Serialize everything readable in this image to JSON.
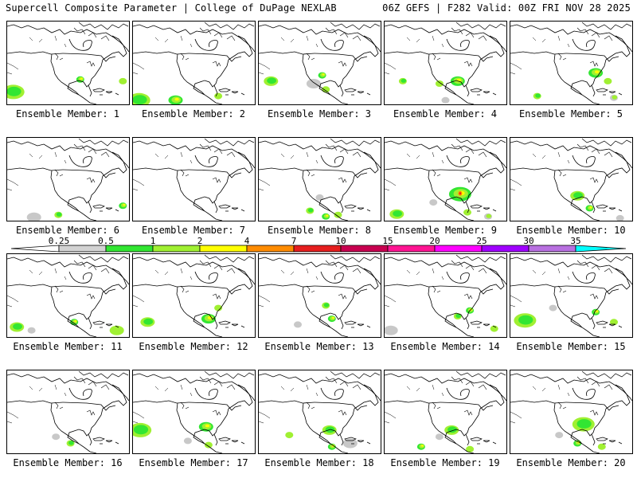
{
  "header": {
    "title_left": "Supercell Composite Parameter | College of DuPage NEXLAB",
    "title_right": "06Z GEFS | F282 Valid: 00Z FRI NOV 28 2025"
  },
  "member_prefix": "Ensemble Member:",
  "members": [
    {
      "label": "Ensemble Member: 1",
      "blobs": [
        [
          "b",
          0.05,
          0.85,
          "l"
        ],
        [
          "c",
          0.6,
          0.7,
          "s"
        ],
        [
          "d",
          0.95,
          0.72,
          "s"
        ]
      ]
    },
    {
      "label": "Ensemble Member: 2",
      "blobs": [
        [
          "b",
          0.05,
          0.95,
          "l"
        ],
        [
          "c",
          0.35,
          0.95,
          "m"
        ],
        [
          "d",
          0.7,
          0.9,
          "s"
        ]
      ]
    },
    {
      "label": "Ensemble Member: 3",
      "blobs": [
        [
          "b",
          0.1,
          0.72,
          "m"
        ],
        [
          "c",
          0.52,
          0.65,
          "s"
        ],
        [
          "d",
          0.55,
          0.82,
          "s"
        ],
        [
          "a",
          0.45,
          0.75,
          "m"
        ]
      ]
    },
    {
      "label": "Ensemble Member: 4",
      "blobs": [
        [
          "b",
          0.15,
          0.72,
          "s"
        ],
        [
          "c",
          0.6,
          0.72,
          "m"
        ],
        [
          "d",
          0.45,
          0.75,
          "s"
        ],
        [
          "a",
          0.5,
          0.95,
          "s"
        ]
      ]
    },
    {
      "label": "Ensemble Member: 5",
      "blobs": [
        [
          "b",
          0.22,
          0.9,
          "s"
        ],
        [
          "c",
          0.7,
          0.62,
          "m"
        ],
        [
          "d",
          0.8,
          0.72,
          "s"
        ],
        [
          "e",
          0.85,
          0.92,
          "s"
        ]
      ]
    },
    {
      "label": "Ensemble Member: 6",
      "blobs": [
        [
          "a",
          0.22,
          0.96,
          "m"
        ],
        [
          "b",
          0.42,
          0.93,
          "s"
        ],
        [
          "c",
          0.95,
          0.82,
          "s"
        ]
      ]
    },
    {
      "label": "Ensemble Member: 7",
      "blobs": []
    },
    {
      "label": "Ensemble Member: 8",
      "blobs": [
        [
          "a",
          0.5,
          0.72,
          "s"
        ],
        [
          "b",
          0.42,
          0.88,
          "s"
        ],
        [
          "c",
          0.55,
          0.95,
          "s"
        ],
        [
          "d",
          0.65,
          0.93,
          "s"
        ]
      ]
    },
    {
      "label": "Ensemble Member: 9",
      "blobs": [
        [
          "b",
          0.1,
          0.92,
          "m"
        ],
        [
          "c",
          0.62,
          0.68,
          "l"
        ],
        [
          "d",
          0.68,
          0.9,
          "s"
        ],
        [
          "e",
          0.85,
          0.95,
          "s"
        ],
        [
          "a",
          0.4,
          0.78,
          "s"
        ]
      ]
    },
    {
      "label": "Ensemble Member: 10",
      "blobs": [
        [
          "b",
          0.55,
          0.7,
          "m"
        ],
        [
          "c",
          0.65,
          0.85,
          "s"
        ],
        [
          "a",
          0.9,
          0.97,
          "s"
        ]
      ]
    },
    {
      "label": "Ensemble Member: 11",
      "blobs": [
        [
          "b",
          0.08,
          0.88,
          "m"
        ],
        [
          "c",
          0.55,
          0.82,
          "s"
        ],
        [
          "d",
          0.9,
          0.92,
          "m"
        ],
        [
          "a",
          0.2,
          0.92,
          "s"
        ]
      ]
    },
    {
      "label": "Ensemble Member: 12",
      "blobs": [
        [
          "b",
          0.12,
          0.82,
          "m"
        ],
        [
          "c",
          0.62,
          0.78,
          "m"
        ],
        [
          "d",
          0.7,
          0.65,
          "s"
        ]
      ]
    },
    {
      "label": "Ensemble Member: 13",
      "blobs": [
        [
          "b",
          0.55,
          0.62,
          "s"
        ],
        [
          "a",
          0.32,
          0.85,
          "s"
        ],
        [
          "c",
          0.6,
          0.78,
          "s"
        ]
      ]
    },
    {
      "label": "Ensemble Member: 14",
      "blobs": [
        [
          "a",
          0.05,
          0.92,
          "m"
        ],
        [
          "b",
          0.6,
          0.75,
          "s"
        ],
        [
          "c",
          0.7,
          0.68,
          "s"
        ],
        [
          "d",
          0.9,
          0.9,
          "s"
        ]
      ]
    },
    {
      "label": "Ensemble Member: 15",
      "blobs": [
        [
          "b",
          0.12,
          0.8,
          "l"
        ],
        [
          "c",
          0.7,
          0.7,
          "s"
        ],
        [
          "a",
          0.35,
          0.65,
          "s"
        ],
        [
          "d",
          0.85,
          0.82,
          "s"
        ]
      ]
    },
    {
      "label": "Ensemble Member: 16",
      "blobs": [
        [
          "b",
          0.52,
          0.88,
          "s"
        ],
        [
          "a",
          0.4,
          0.8,
          "s"
        ]
      ]
    },
    {
      "label": "Ensemble Member: 17",
      "blobs": [
        [
          "b",
          0.06,
          0.72,
          "l"
        ],
        [
          "c",
          0.6,
          0.68,
          "m"
        ],
        [
          "d",
          0.62,
          0.9,
          "s"
        ],
        [
          "a",
          0.45,
          0.85,
          "s"
        ]
      ]
    },
    {
      "label": "Ensemble Member: 18",
      "blobs": [
        [
          "b",
          0.58,
          0.72,
          "m"
        ],
        [
          "c",
          0.6,
          0.92,
          "s"
        ],
        [
          "a",
          0.75,
          0.88,
          "m"
        ],
        [
          "d",
          0.25,
          0.78,
          "s"
        ]
      ]
    },
    {
      "label": "Ensemble Member: 19",
      "blobs": [
        [
          "b",
          0.55,
          0.72,
          "m"
        ],
        [
          "c",
          0.3,
          0.92,
          "s"
        ],
        [
          "a",
          0.45,
          0.8,
          "s"
        ],
        [
          "d",
          0.7,
          0.95,
          "s"
        ]
      ]
    },
    {
      "label": "Ensemble Member: 20",
      "blobs": [
        [
          "b",
          0.6,
          0.65,
          "l"
        ],
        [
          "c",
          0.55,
          0.88,
          "s"
        ],
        [
          "a",
          0.4,
          0.78,
          "s"
        ],
        [
          "d",
          0.75,
          0.92,
          "s"
        ]
      ]
    }
  ],
  "colorbar": {
    "labels": [
      "0.25",
      "0.5",
      "1",
      "2",
      "4",
      "7",
      "10",
      "15",
      "20",
      "25",
      "30",
      "35"
    ],
    "colors": [
      "#d2d2d2",
      "#32e632",
      "#a0f032",
      "#ffff00",
      "#ff8c00",
      "#e61e1e",
      "#c80050",
      "#ff1493",
      "#ff00ff",
      "#a000ff",
      "#b870e0",
      "#00ffff"
    ]
  },
  "fill_colors": {
    "gray": "#c8c8c8",
    "light_green": "#a0f032",
    "green": "#32e632",
    "yellow": "#ffff00",
    "orange": "#ff8c00",
    "red": "#e61e1e"
  }
}
